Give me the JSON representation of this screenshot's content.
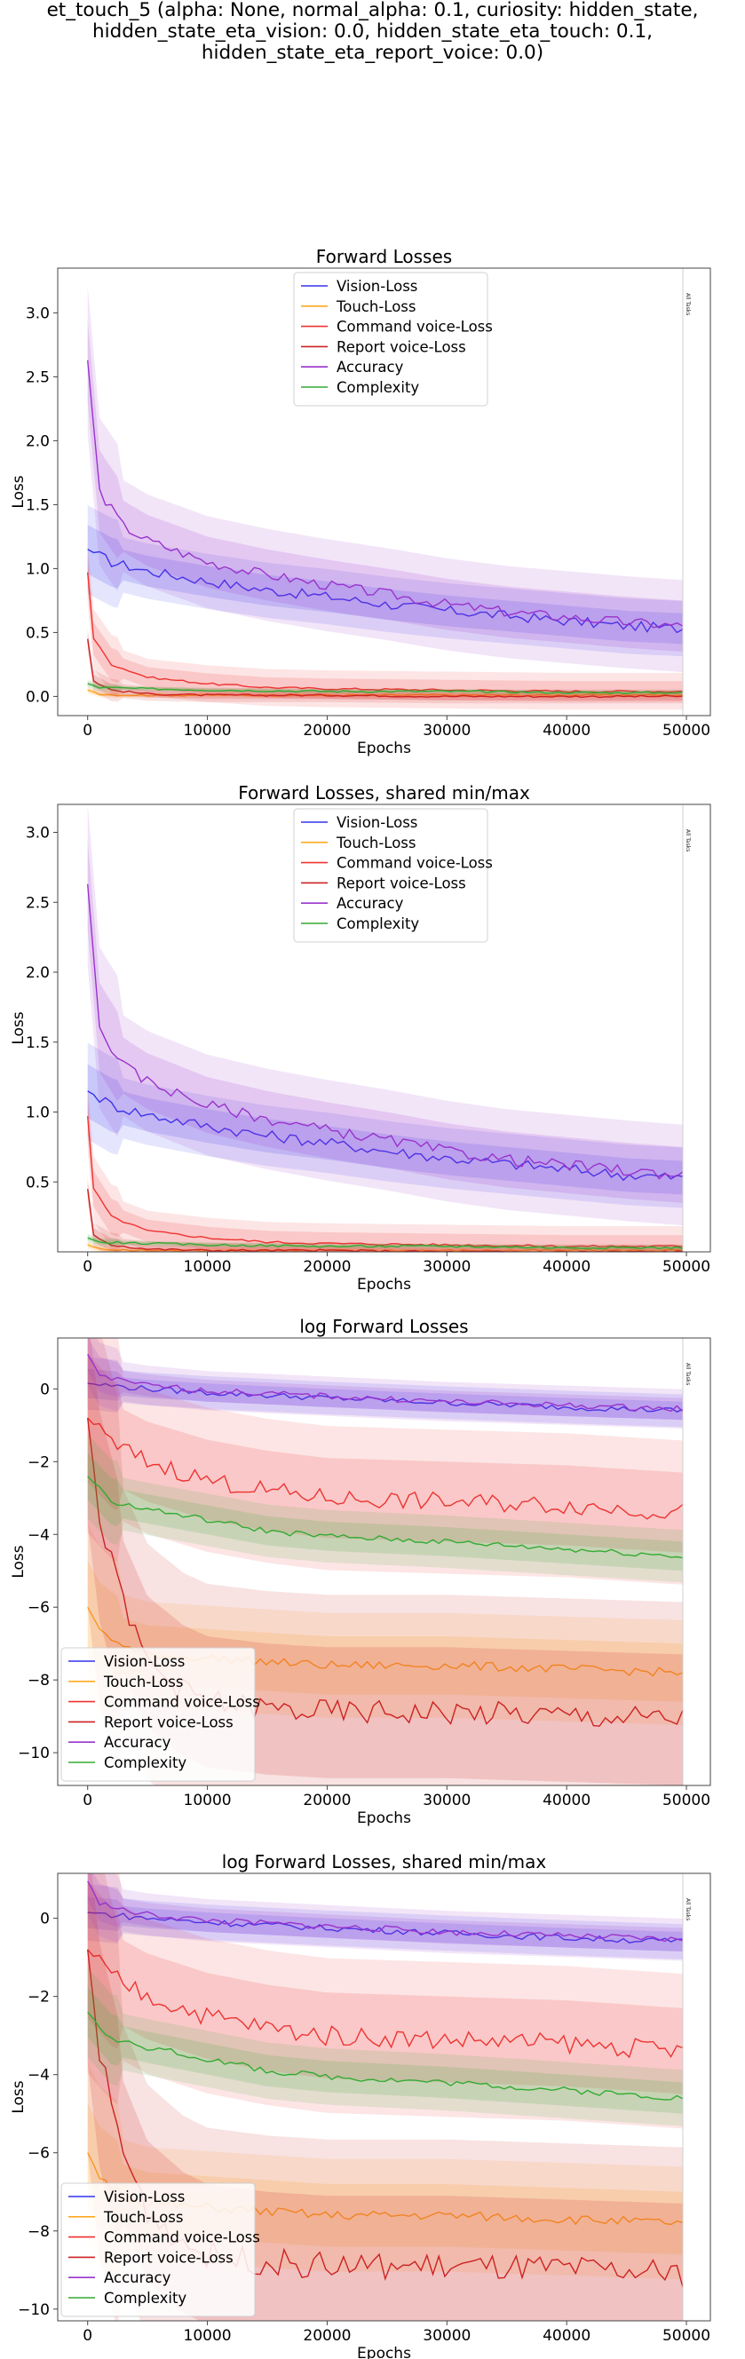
{
  "figure_title_lines": [
    "et_touch_5 (alpha: None, normal_alpha: 0.1, curiosity: hidden_state,",
    "hidden_state_eta_vision: 0.0, hidden_state_eta_touch: 0.1,",
    "hidden_state_eta_report_voice: 0.0)"
  ],
  "colors": {
    "Vision-Loss": "#3333ee",
    "Touch-Loss": "#ffaa22",
    "Command voice-Loss": "#ee3333",
    "Report voice-Loss": "#cc2222",
    "Accuracy": "#9933cc",
    "Complexity": "#33aa33"
  },
  "chart_data": [
    {
      "type": "line",
      "title": "Forward Losses",
      "xlabel": "Epochs",
      "ylabel": "Loss",
      "xlim": [
        -2500,
        52000
      ],
      "ylim": [
        -0.15,
        3.35
      ],
      "xticks": [
        0,
        10000,
        20000,
        30000,
        40000,
        50000
      ],
      "yticks": [
        0.0,
        0.5,
        1.0,
        1.5,
        2.0,
        2.5,
        3.0
      ],
      "ytick_labels": [
        "0.0",
        "0.5",
        "1.0",
        "1.5",
        "2.0",
        "2.5",
        "3.0"
      ],
      "vline_x": 49700,
      "vline_label": "All Tasks",
      "legend_position": "top-center",
      "log": false,
      "series": [
        {
          "name": "Vision-Loss",
          "x": [
            0,
            2000,
            5000,
            10000,
            15000,
            20000,
            25000,
            30000,
            35000,
            40000,
            45000,
            49700
          ],
          "values": [
            1.15,
            1.05,
            0.98,
            0.9,
            0.83,
            0.78,
            0.72,
            0.67,
            0.63,
            0.59,
            0.55,
            0.53
          ]
        },
        {
          "name": "Touch-Loss",
          "x": [
            0,
            1000,
            3000,
            10000,
            20000,
            30000,
            40000,
            49700
          ],
          "values": [
            0.05,
            0.02,
            0.01,
            0.01,
            0.01,
            0.01,
            0.01,
            0.01
          ]
        },
        {
          "name": "Command voice-Loss",
          "x": [
            0,
            500,
            2000,
            5000,
            10000,
            15000,
            20000,
            30000,
            40000,
            49700
          ],
          "values": [
            0.97,
            0.45,
            0.25,
            0.15,
            0.1,
            0.07,
            0.06,
            0.05,
            0.04,
            0.04
          ]
        },
        {
          "name": "Report voice-Loss",
          "x": [
            0,
            500,
            2000,
            5000,
            10000,
            20000,
            30000,
            40000,
            49700
          ],
          "values": [
            0.45,
            0.12,
            0.05,
            0.02,
            0.01,
            0.01,
            0.0,
            0.0,
            0.0
          ]
        },
        {
          "name": "Accuracy",
          "x": [
            0,
            1000,
            3000,
            5000,
            10000,
            15000,
            20000,
            25000,
            30000,
            35000,
            40000,
            45000,
            49700
          ],
          "values": [
            2.63,
            1.6,
            1.33,
            1.22,
            1.05,
            0.95,
            0.87,
            0.8,
            0.72,
            0.66,
            0.62,
            0.58,
            0.55
          ]
        },
        {
          "name": "Complexity",
          "x": [
            0,
            1000,
            5000,
            10000,
            20000,
            30000,
            40000,
            49700
          ],
          "values": [
            0.1,
            0.07,
            0.06,
            0.05,
            0.04,
            0.04,
            0.03,
            0.03
          ]
        }
      ]
    },
    {
      "type": "line",
      "title": "Forward Losses, shared min/max",
      "xlabel": "Epochs",
      "ylabel": "Loss",
      "xlim": [
        -2500,
        52000
      ],
      "ylim": [
        0.0,
        3.2
      ],
      "xticks": [
        0,
        10000,
        20000,
        30000,
        40000,
        50000
      ],
      "yticks": [
        0.5,
        1.0,
        1.5,
        2.0,
        2.5,
        3.0
      ],
      "ytick_labels": [
        "0.5",
        "1.0",
        "1.5",
        "2.0",
        "2.5",
        "3.0"
      ],
      "vline_x": 49700,
      "vline_label": "All Tasks",
      "legend_position": "top-center",
      "log": false,
      "series": [
        {
          "name": "Vision-Loss",
          "x": [
            0,
            2000,
            5000,
            10000,
            15000,
            20000,
            25000,
            30000,
            35000,
            40000,
            45000,
            49700
          ],
          "values": [
            1.15,
            1.05,
            0.98,
            0.9,
            0.83,
            0.78,
            0.72,
            0.67,
            0.63,
            0.59,
            0.55,
            0.53
          ]
        },
        {
          "name": "Touch-Loss",
          "x": [
            0,
            1000,
            3000,
            10000,
            20000,
            30000,
            40000,
            49700
          ],
          "values": [
            0.05,
            0.02,
            0.01,
            0.01,
            0.01,
            0.01,
            0.01,
            0.01
          ]
        },
        {
          "name": "Command voice-Loss",
          "x": [
            0,
            500,
            2000,
            5000,
            10000,
            15000,
            20000,
            30000,
            40000,
            49700
          ],
          "values": [
            0.97,
            0.45,
            0.25,
            0.15,
            0.1,
            0.07,
            0.06,
            0.05,
            0.04,
            0.04
          ]
        },
        {
          "name": "Report voice-Loss",
          "x": [
            0,
            500,
            2000,
            5000,
            10000,
            20000,
            30000,
            40000,
            49700
          ],
          "values": [
            0.45,
            0.12,
            0.05,
            0.02,
            0.01,
            0.01,
            0.0,
            0.0,
            0.0
          ]
        },
        {
          "name": "Accuracy",
          "x": [
            0,
            1000,
            3000,
            5000,
            10000,
            15000,
            20000,
            25000,
            30000,
            35000,
            40000,
            45000,
            49700
          ],
          "values": [
            2.63,
            1.6,
            1.33,
            1.22,
            1.05,
            0.95,
            0.87,
            0.8,
            0.72,
            0.66,
            0.62,
            0.58,
            0.55
          ]
        },
        {
          "name": "Complexity",
          "x": [
            0,
            1000,
            5000,
            10000,
            20000,
            30000,
            40000,
            49700
          ],
          "values": [
            0.1,
            0.07,
            0.06,
            0.05,
            0.04,
            0.04,
            0.03,
            0.03
          ]
        }
      ]
    },
    {
      "type": "line",
      "title": "log Forward Losses",
      "xlabel": "Epochs",
      "ylabel": "Loss",
      "xlim": [
        -2500,
        52000
      ],
      "ylim": [
        -10.9,
        1.4
      ],
      "xticks": [
        0,
        10000,
        20000,
        30000,
        40000,
        50000
      ],
      "yticks": [
        0,
        -2,
        -4,
        -6,
        -8,
        -10
      ],
      "ytick_labels": [
        "0",
        "−2",
        "−4",
        "−6",
        "−8",
        "−10"
      ],
      "vline_x": 49700,
      "vline_label": "All Tasks",
      "legend_position": "bottom-left",
      "log": true,
      "series": [
        {
          "name": "Vision-Loss",
          "x": [
            0,
            5000,
            10000,
            20000,
            30000,
            40000,
            49700
          ],
          "values": [
            0.15,
            0.0,
            -0.1,
            -0.25,
            -0.38,
            -0.5,
            -0.6
          ]
        },
        {
          "name": "Touch-Loss",
          "x": [
            0,
            1000,
            3000,
            5000,
            10000,
            20000,
            30000,
            40000,
            49700
          ],
          "values": [
            -6.0,
            -6.6,
            -7.1,
            -7.3,
            -7.4,
            -7.6,
            -7.6,
            -7.7,
            -7.8
          ]
        },
        {
          "name": "Command voice-Loss",
          "x": [
            0,
            2000,
            5000,
            10000,
            15000,
            20000,
            30000,
            40000,
            49700
          ],
          "values": [
            -0.8,
            -1.5,
            -2.0,
            -2.5,
            -2.8,
            -3.0,
            -3.1,
            -3.2,
            -3.4
          ]
        },
        {
          "name": "Report voice-Loss",
          "x": [
            0,
            1000,
            3000,
            5000,
            8000,
            10000,
            15000,
            20000,
            30000,
            40000,
            49700
          ],
          "values": [
            -0.8,
            -3.5,
            -6.0,
            -7.5,
            -8.3,
            -8.6,
            -8.8,
            -8.9,
            -8.9,
            -9.0,
            -9.1
          ]
        },
        {
          "name": "Accuracy",
          "x": [
            0,
            1000,
            3000,
            5000,
            10000,
            20000,
            30000,
            40000,
            49700
          ],
          "values": [
            0.95,
            0.4,
            0.2,
            0.1,
            -0.05,
            -0.2,
            -0.35,
            -0.45,
            -0.55
          ]
        },
        {
          "name": "Complexity",
          "x": [
            0,
            2000,
            5000,
            10000,
            15000,
            20000,
            30000,
            40000,
            49700
          ],
          "values": [
            -2.4,
            -3.1,
            -3.3,
            -3.6,
            -3.9,
            -4.05,
            -4.2,
            -4.4,
            -4.6
          ]
        }
      ]
    },
    {
      "type": "line",
      "title": "log Forward Losses, shared min/max",
      "xlabel": "Epochs",
      "ylabel": "Loss",
      "xlim": [
        -2500,
        52000
      ],
      "ylim": [
        -10.3,
        1.15
      ],
      "xticks": [
        0,
        10000,
        20000,
        30000,
        40000,
        50000
      ],
      "yticks": [
        0,
        -2,
        -4,
        -6,
        -8,
        -10
      ],
      "ytick_labels": [
        "0",
        "−2",
        "−4",
        "−6",
        "−8",
        "−10"
      ],
      "vline_x": 49700,
      "vline_label": "All Tasks",
      "legend_position": "bottom-left",
      "log": true,
      "series": [
        {
          "name": "Vision-Loss",
          "x": [
            0,
            5000,
            10000,
            20000,
            30000,
            40000,
            49700
          ],
          "values": [
            0.15,
            0.0,
            -0.1,
            -0.25,
            -0.38,
            -0.5,
            -0.6
          ]
        },
        {
          "name": "Touch-Loss",
          "x": [
            0,
            1000,
            3000,
            5000,
            10000,
            20000,
            30000,
            40000,
            49700
          ],
          "values": [
            -6.0,
            -6.6,
            -7.1,
            -7.3,
            -7.4,
            -7.6,
            -7.6,
            -7.7,
            -7.8
          ]
        },
        {
          "name": "Command voice-Loss",
          "x": [
            0,
            2000,
            5000,
            10000,
            15000,
            20000,
            30000,
            40000,
            49700
          ],
          "values": [
            -0.8,
            -1.5,
            -2.0,
            -2.5,
            -2.8,
            -3.0,
            -3.1,
            -3.2,
            -3.4
          ]
        },
        {
          "name": "Report voice-Loss",
          "x": [
            0,
            1000,
            3000,
            5000,
            8000,
            10000,
            15000,
            20000,
            30000,
            40000,
            49700
          ],
          "values": [
            -0.8,
            -3.5,
            -6.0,
            -7.5,
            -8.3,
            -8.6,
            -8.8,
            -8.9,
            -8.9,
            -9.0,
            -9.1
          ]
        },
        {
          "name": "Accuracy",
          "x": [
            0,
            1000,
            3000,
            5000,
            10000,
            20000,
            30000,
            40000,
            49700
          ],
          "values": [
            0.95,
            0.4,
            0.2,
            0.1,
            -0.05,
            -0.2,
            -0.35,
            -0.45,
            -0.55
          ]
        },
        {
          "name": "Complexity",
          "x": [
            0,
            2000,
            5000,
            10000,
            15000,
            20000,
            30000,
            40000,
            49700
          ],
          "values": [
            -2.4,
            -3.1,
            -3.3,
            -3.6,
            -3.9,
            -4.05,
            -4.2,
            -4.4,
            -4.6
          ]
        }
      ]
    }
  ]
}
